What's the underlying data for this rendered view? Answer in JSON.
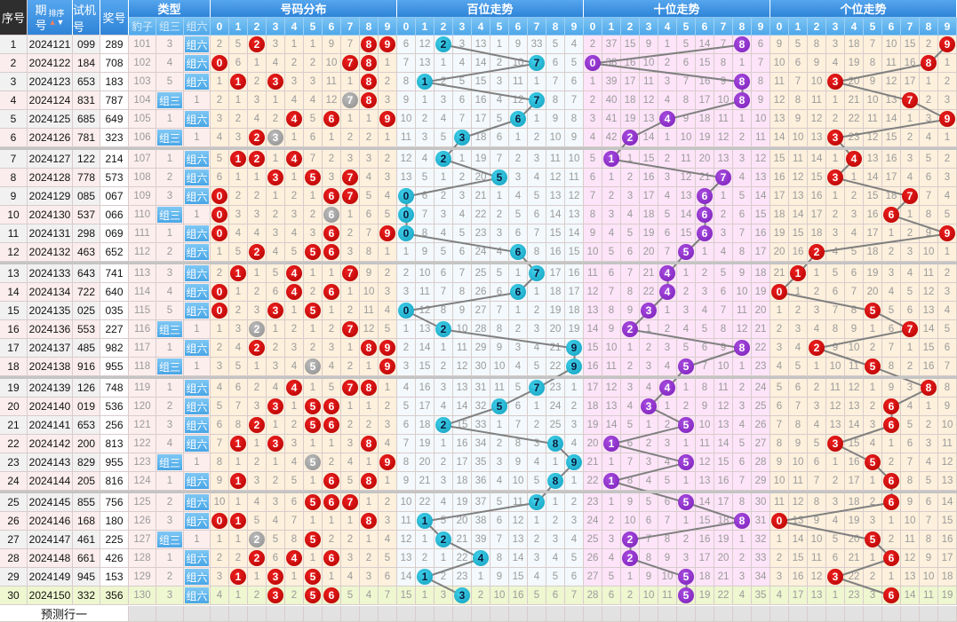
{
  "header": {
    "seq": "序号",
    "period_top": "期",
    "period_bottom": "号",
    "sort_label": "排序",
    "sort_up_icon": "▲",
    "sort_down_icon": "▼",
    "trial": "试机号",
    "draw": "奖号",
    "type_group": "类型",
    "type_cols": [
      "豹子",
      "组三",
      "组六"
    ],
    "distribution_group": "号码分布",
    "hundreds_group": "百位走势",
    "tens_group": "十位走势",
    "units_group": "个位走势",
    "digits": [
      "0",
      "1",
      "2",
      "3",
      "4",
      "5",
      "6",
      "7",
      "8",
      "9"
    ]
  },
  "rows": [
    {
      "seq": "1",
      "period": "2024121",
      "trial": "099",
      "draw": "289"
    },
    {
      "seq": "2",
      "period": "2024122",
      "trial": "184",
      "draw": "708"
    },
    {
      "seq": "3",
      "period": "2024123",
      "trial": "653",
      "draw": "183"
    },
    {
      "seq": "4",
      "period": "2024124",
      "trial": "831",
      "draw": "787"
    },
    {
      "seq": "5",
      "period": "2024125",
      "trial": "685",
      "draw": "649"
    },
    {
      "seq": "6",
      "period": "2024126",
      "trial": "781",
      "draw": "323"
    },
    {
      "seq": "7",
      "period": "2024127",
      "trial": "122",
      "draw": "214"
    },
    {
      "seq": "8",
      "period": "2024128",
      "trial": "778",
      "draw": "573"
    },
    {
      "seq": "9",
      "period": "2024129",
      "trial": "085",
      "draw": "067"
    },
    {
      "seq": "10",
      "period": "2024130",
      "trial": "537",
      "draw": "066"
    },
    {
      "seq": "11",
      "period": "2024131",
      "trial": "298",
      "draw": "069"
    },
    {
      "seq": "12",
      "period": "2024132",
      "trial": "463",
      "draw": "652"
    },
    {
      "seq": "13",
      "period": "2024133",
      "trial": "643",
      "draw": "741"
    },
    {
      "seq": "14",
      "period": "2024134",
      "trial": "722",
      "draw": "640"
    },
    {
      "seq": "15",
      "period": "2024135",
      "trial": "025",
      "draw": "035"
    },
    {
      "seq": "16",
      "period": "2024136",
      "trial": "553",
      "draw": "227"
    },
    {
      "seq": "17",
      "period": "2024137",
      "trial": "485",
      "draw": "982"
    },
    {
      "seq": "18",
      "period": "2024138",
      "trial": "916",
      "draw": "955"
    },
    {
      "seq": "19",
      "period": "2024139",
      "trial": "126",
      "draw": "748"
    },
    {
      "seq": "20",
      "period": "2024140",
      "trial": "019",
      "draw": "536"
    },
    {
      "seq": "21",
      "period": "2024141",
      "trial": "653",
      "draw": "256"
    },
    {
      "seq": "22",
      "period": "2024142",
      "trial": "200",
      "draw": "813"
    },
    {
      "seq": "23",
      "period": "2024143",
      "trial": "829",
      "draw": "955"
    },
    {
      "seq": "24",
      "period": "2024144",
      "trial": "205",
      "draw": "816"
    },
    {
      "seq": "25",
      "period": "2024145",
      "trial": "855",
      "draw": "756"
    },
    {
      "seq": "26",
      "period": "2024146",
      "trial": "168",
      "draw": "180"
    },
    {
      "seq": "27",
      "period": "2024147",
      "trial": "461",
      "draw": "225"
    },
    {
      "seq": "28",
      "period": "2024148",
      "trial": "661",
      "draw": "426"
    },
    {
      "seq": "29",
      "period": "2024149",
      "trial": "945",
      "draw": "153"
    },
    {
      "seq": "30",
      "period": "2024150",
      "trial": "332",
      "draw": "356"
    }
  ],
  "first_row_misses": {
    "type": [
      101,
      3,
      0
    ],
    "distribution": [
      2,
      5,
      0,
      3,
      1,
      1,
      9,
      7,
      0,
      0
    ],
    "hundreds": [
      6,
      12,
      0,
      3,
      13,
      1,
      9,
      33,
      5,
      4
    ],
    "tens": [
      2,
      37,
      15,
      9,
      1,
      5,
      14,
      7,
      0,
      6
    ],
    "units": [
      9,
      5,
      8,
      3,
      18,
      7,
      10,
      15,
      2,
      0
    ]
  },
  "type_names": {
    "baozi": "豹子",
    "zusan": "组三",
    "zuliu": "组六"
  },
  "predict_label": "预测行一",
  "colors": {
    "distribution_ball": "#c80000",
    "duplicate_ball": "#999999",
    "hundreds_ball": "#22b4d2",
    "tens_ball": "#8e2fc9",
    "units_ball": "#c80000",
    "trend_line": "#808080",
    "latest_row": "#eef7d0"
  }
}
